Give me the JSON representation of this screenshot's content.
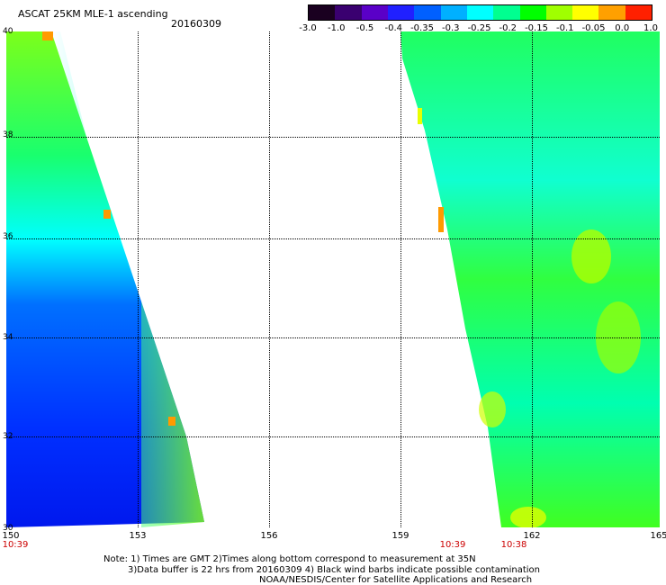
{
  "header": {
    "title": "ASCAT 25KM MLE-1 ascending",
    "date": "20160309"
  },
  "colorbar": {
    "ticks": [
      "-3.0",
      "-1.0",
      "-0.5",
      "-0.4",
      "-0.35",
      "-0.3",
      "-0.25",
      "-0.2",
      "-0.15",
      "-0.1",
      "-0.05",
      "0.0",
      "1.0"
    ],
    "colors": [
      "#1a0020",
      "#3a0070",
      "#5a00c8",
      "#2020ff",
      "#0060ff",
      "#00b0ff",
      "#00ffff",
      "#00ff90",
      "#00ff00",
      "#a0ff00",
      "#ffff00",
      "#ffa000",
      "#ff2000"
    ]
  },
  "map": {
    "lat_labels": [
      "40",
      "38",
      "36",
      "34",
      "32",
      "30"
    ],
    "lon_labels": [
      "150",
      "153",
      "156",
      "159",
      "162",
      "165"
    ],
    "swath_times": [
      "10:39",
      "10:39",
      "10:38"
    ]
  },
  "notes": {
    "line1": "Note: 1) Times are GMT 2)Times along bottom correspond to measurement at 35N",
    "line2": "3)Data buffer is 22 hrs from 20160309 4) Black wind barbs indicate possible contamination",
    "line3": "NOAA/NESDIS/Center for Satellite Applications and Research"
  }
}
